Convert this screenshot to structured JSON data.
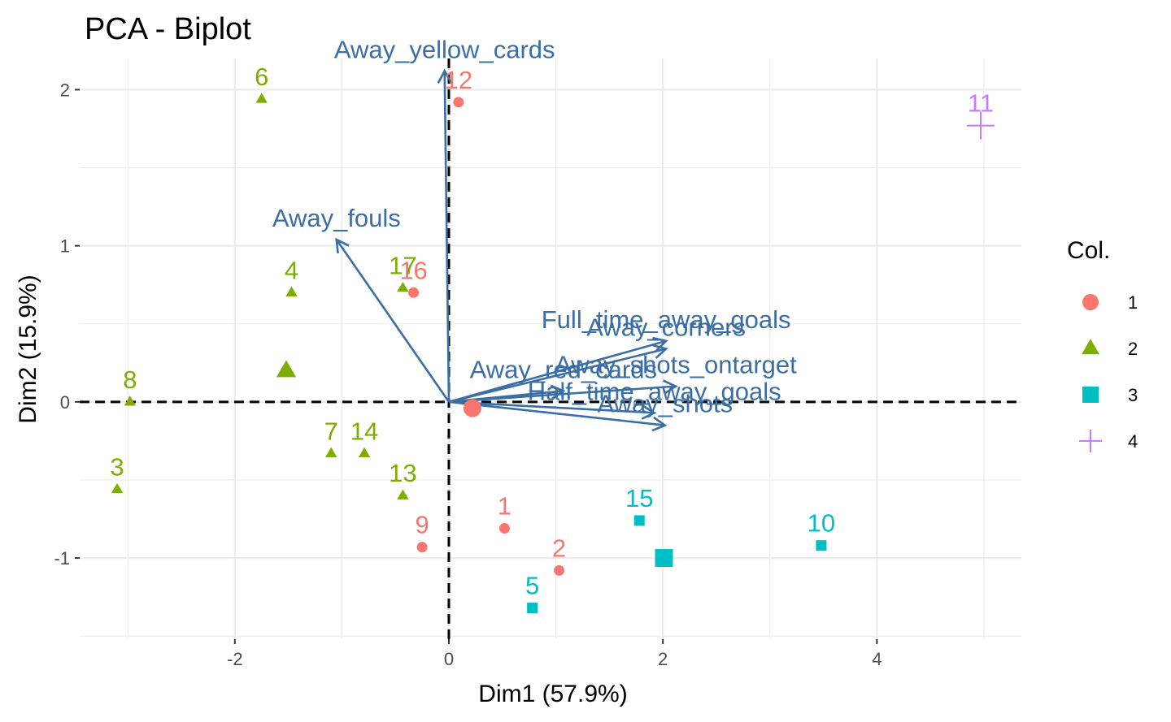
{
  "chart_data": {
    "type": "scatter",
    "title": "PCA - Biplot",
    "xlabel": "Dim1 (57.9%)",
    "ylabel": "Dim2 (15.9%)",
    "xlim": [
      -3.45,
      5.35
    ],
    "ylim": [
      -1.52,
      2.2
    ],
    "x_ticks": [
      -2,
      0,
      2,
      4
    ],
    "x_tick_labels": [
      "-2",
      "0",
      "2",
      "4"
    ],
    "y_ticks": [
      -1,
      0,
      1,
      2
    ],
    "y_tick_labels": [
      "-1",
      "0",
      "1",
      "2"
    ],
    "grid": true,
    "reference_lines": {
      "x": 0,
      "y": 0,
      "style": "dashed"
    },
    "legend": {
      "title": "Col.",
      "position": "right",
      "entries": [
        {
          "label": "1",
          "color": "#F8766D",
          "shape": "circle"
        },
        {
          "label": "2",
          "color": "#7CAE00",
          "shape": "triangle"
        },
        {
          "label": "3",
          "color": "#00BFC4",
          "shape": "square"
        },
        {
          "label": "4",
          "color": "#C77CFF",
          "shape": "cross"
        }
      ]
    },
    "points": [
      {
        "label": "1",
        "x": 0.52,
        "y": -0.81,
        "group": "1"
      },
      {
        "label": "2",
        "x": 1.03,
        "y": -1.08,
        "group": "1"
      },
      {
        "label": "3",
        "x": -3.1,
        "y": -0.56,
        "group": "2"
      },
      {
        "label": "4",
        "x": -1.47,
        "y": 0.7,
        "group": "2"
      },
      {
        "label": "5",
        "x": 0.78,
        "y": -1.32,
        "group": "3"
      },
      {
        "label": "6",
        "x": -1.75,
        "y": 1.94,
        "group": "2"
      },
      {
        "label": "7",
        "x": -1.1,
        "y": -0.33,
        "group": "2"
      },
      {
        "label": "8",
        "x": -2.98,
        "y": 0.0,
        "group": "2"
      },
      {
        "label": "9",
        "x": -0.25,
        "y": -0.93,
        "group": "1"
      },
      {
        "label": "10",
        "x": 3.48,
        "y": -0.92,
        "group": "3"
      },
      {
        "label": "11",
        "x": 4.97,
        "y": 1.77,
        "group": "4"
      },
      {
        "label": "12",
        "x": 0.09,
        "y": 1.92,
        "group": "1"
      },
      {
        "label": "13",
        "x": -0.43,
        "y": -0.6,
        "group": "2"
      },
      {
        "label": "14",
        "x": -0.79,
        "y": -0.33,
        "group": "2"
      },
      {
        "label": "15",
        "x": 1.78,
        "y": -0.76,
        "group": "3"
      },
      {
        "label": "16",
        "x": -0.33,
        "y": 0.7,
        "group": "1"
      },
      {
        "label": "17",
        "x": -0.43,
        "y": 0.73,
        "group": "2"
      }
    ],
    "centroids": [
      {
        "group": "1",
        "x": 0.22,
        "y": -0.04
      },
      {
        "group": "2",
        "x": -1.52,
        "y": 0.2
      },
      {
        "group": "3",
        "x": 2.01,
        "y": -1.0
      }
    ],
    "variables": [
      {
        "label": "Away_yellow_cards",
        "x": -0.04,
        "y": 2.12
      },
      {
        "label": "Away_fouls",
        "x": -1.05,
        "y": 1.04
      },
      {
        "label": "Away_red_cards",
        "x": 1.07,
        "y": 0.07
      },
      {
        "label": "Full_time_away_goals",
        "x": 2.03,
        "y": 0.39
      },
      {
        "label": "Away_corners",
        "x": 2.03,
        "y": 0.34
      },
      {
        "label": "Away_shots_ontarget",
        "x": 2.12,
        "y": 0.1
      },
      {
        "label": "Half_time_away_goals",
        "x": 1.92,
        "y": -0.07
      },
      {
        "label": "Away_shots",
        "x": 2.02,
        "y": -0.15
      }
    ]
  }
}
